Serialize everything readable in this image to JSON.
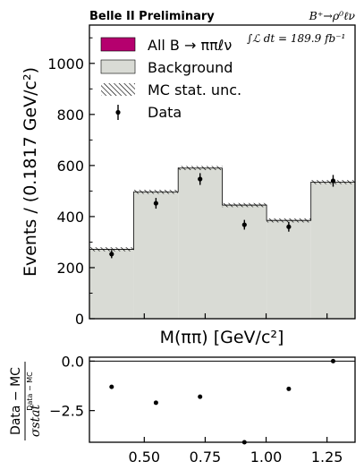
{
  "chart_data": [
    {
      "type": "bar",
      "header_left": "Belle II Preliminary",
      "header_right": "B⁺→ρ⁰ℓν",
      "luminosity": "∫ℒ dt = 189.9 fb⁻¹",
      "xlabel": "M(ππ) [GeV/c²]",
      "ylabel": "Events / (0.1817 GeV/c²)",
      "xlim": [
        0.275,
        1.365
      ],
      "ylim": [
        0,
        1150
      ],
      "yticks": [
        0,
        200,
        400,
        600,
        800,
        1000
      ],
      "bin_edges": [
        0.275,
        0.457,
        0.639,
        0.82,
        1.002,
        1.184,
        1.365
      ],
      "series": [
        {
          "name": "All B → ππℓν",
          "values": [
            0,
            0,
            0,
            0,
            0,
            0
          ]
        },
        {
          "name": "Background",
          "values": [
            272,
            497,
            590,
            445,
            385,
            535
          ]
        }
      ],
      "mc_unc_label": "MC stat. unc.",
      "mc_unc": [
        8,
        8,
        8,
        8,
        8,
        8
      ],
      "data": {
        "name": "Data",
        "x": [
          0.366,
          0.548,
          0.729,
          0.911,
          1.093,
          1.275
        ],
        "y": [
          253,
          452,
          547,
          368,
          360,
          540
        ],
        "yerr": [
          16,
          21,
          23,
          19,
          19,
          23
        ]
      },
      "legend_position": "top-left",
      "colors": {
        "signal": "#b5006e",
        "background": "#d9dbd5",
        "edge": "#000000"
      }
    },
    {
      "type": "scatter",
      "ylabel_num": "Data − MC",
      "ylabel_den": "σstat",
      "ylabel_den_sup": "Data − MC",
      "xlim": [
        0.275,
        1.365
      ],
      "ylim": [
        -4.1,
        0.2
      ],
      "yticks": [
        0.0,
        -2.5
      ],
      "xticks": [
        0.5,
        0.75,
        1.0,
        1.25
      ],
      "xtick_labels": [
        "0.50",
        "0.75",
        "1.00",
        "1.25"
      ],
      "ytick_labels": [
        "0.0",
        "−2.5"
      ],
      "x": [
        0.366,
        0.548,
        0.729,
        0.911,
        1.093,
        1.275
      ],
      "y": [
        -1.3,
        -2.1,
        -1.8,
        -4.1,
        -1.4,
        0.0
      ]
    }
  ]
}
